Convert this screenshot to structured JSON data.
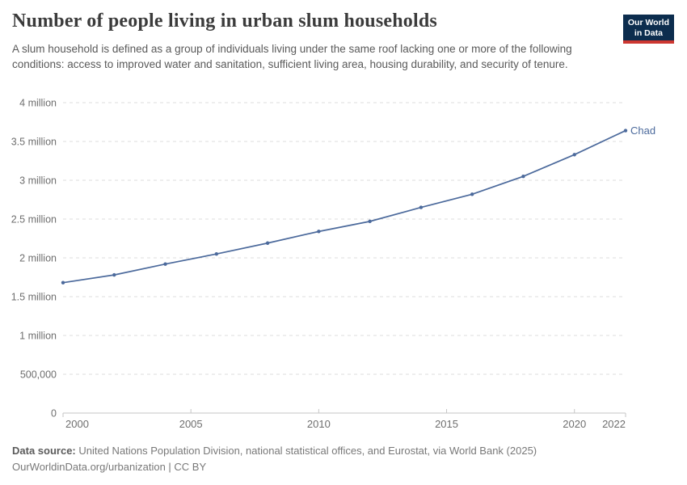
{
  "header": {
    "title": "Number of people living in urban slum households",
    "subtitle": "A slum household is defined as a group of individuals living under the same roof lacking one or more of the following conditions: access to improved water and sanitation, sufficient living area, housing durability, and security of tenure.",
    "logo": {
      "line1": "Our World",
      "line2": "in Data"
    }
  },
  "chart_data": {
    "type": "line",
    "title": "Number of people living in urban slum households",
    "entity": "Chad",
    "x": [
      2000,
      2002,
      2004,
      2006,
      2008,
      2010,
      2012,
      2014,
      2016,
      2018,
      2020,
      2022
    ],
    "series": [
      {
        "name": "Chad",
        "values": [
          1680000,
          1780000,
          1920000,
          2050000,
          2190000,
          2340000,
          2470000,
          2650000,
          2820000,
          3050000,
          3330000,
          3640000
        ]
      }
    ],
    "ylim": [
      0,
      4000000
    ],
    "xlim": [
      2000,
      2022
    ],
    "grid": "horizontal-dashed",
    "legend_position": "end-of-line-label",
    "yticks": [
      {
        "value": 4000000,
        "label": "4 million"
      },
      {
        "value": 3500000,
        "label": "3.5 million"
      },
      {
        "value": 3000000,
        "label": "3 million"
      },
      {
        "value": 2500000,
        "label": "2.5 million"
      },
      {
        "value": 2000000,
        "label": "2 million"
      },
      {
        "value": 1500000,
        "label": "1.5 million"
      },
      {
        "value": 1000000,
        "label": "1 million"
      },
      {
        "value": 500000,
        "label": "500,000"
      },
      {
        "value": 0,
        "label": "0"
      }
    ],
    "xticks": [
      {
        "value": 2000,
        "label": "2000"
      },
      {
        "value": 2005,
        "label": "2005"
      },
      {
        "value": 2010,
        "label": "2010"
      },
      {
        "value": 2015,
        "label": "2015"
      },
      {
        "value": 2020,
        "label": "2020"
      },
      {
        "value": 2022,
        "label": "2022"
      }
    ],
    "colors": {
      "line": "#4c6a9c",
      "grid": "#dcdcdc",
      "axis": "#c6c6c6"
    }
  },
  "footer": {
    "data_source_label": "Data source:",
    "data_source_text": " United Nations Population Division, national statistical offices, and Eurostat, via World Bank (2025)",
    "url_text": "OurWorldinData.org/urbanization",
    "separator": " | ",
    "license_text": "CC BY"
  }
}
